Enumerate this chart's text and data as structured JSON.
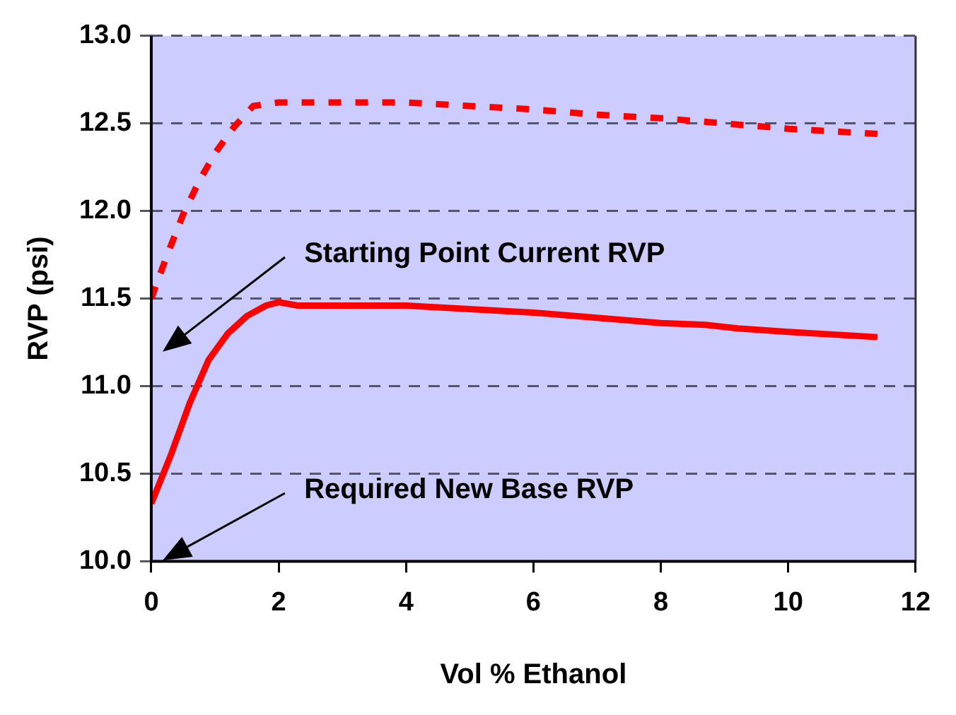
{
  "chart_data": {
    "type": "line",
    "xlabel": "Vol % Ethanol",
    "ylabel": "RVP (psi)",
    "xlim": [
      0,
      12
    ],
    "xticks": [
      0,
      2,
      4,
      6,
      8,
      10,
      12
    ],
    "ylim": [
      10,
      13
    ],
    "yticks": [
      {
        "value": 10,
        "label": "10.0"
      },
      {
        "value": 10.5,
        "label": "10.5"
      },
      {
        "value": 11,
        "label": "11.0"
      },
      {
        "value": 11.5,
        "label": "11.5"
      },
      {
        "value": 12,
        "label": "12.0"
      },
      {
        "value": 12.5,
        "label": "12.5"
      },
      {
        "value": 13,
        "label": "13.0"
      }
    ],
    "grid": "y",
    "legend": false,
    "marker": "none",
    "series": [
      {
        "color": "#ff0000",
        "line_style": "dashed",
        "x": [
          0,
          0.25,
          0.5,
          0.75,
          1.0,
          1.3,
          1.6,
          2,
          3,
          4,
          5,
          6,
          7,
          8,
          9,
          10,
          11.4
        ],
        "values": [
          11.5,
          11.75,
          11.98,
          12.17,
          12.33,
          12.48,
          12.6,
          12.62,
          12.62,
          12.62,
          12.6,
          12.58,
          12.55,
          12.53,
          12.5,
          12.47,
          12.44
        ]
      },
      {
        "color": "#ff0000",
        "line_style": "solid",
        "x": [
          0,
          0.3,
          0.6,
          0.9,
          1.2,
          1.5,
          1.8,
          2.0,
          2.3,
          4,
          6,
          8,
          8.7,
          9.2,
          10,
          11.4
        ],
        "values": [
          10.33,
          10.6,
          10.9,
          11.15,
          11.3,
          11.4,
          11.46,
          11.48,
          11.46,
          11.46,
          11.42,
          11.36,
          11.35,
          11.33,
          11.31,
          11.28
        ]
      }
    ],
    "annotations": [
      "Starting Point Current RVP",
      "Required New Base RVP"
    ]
  }
}
